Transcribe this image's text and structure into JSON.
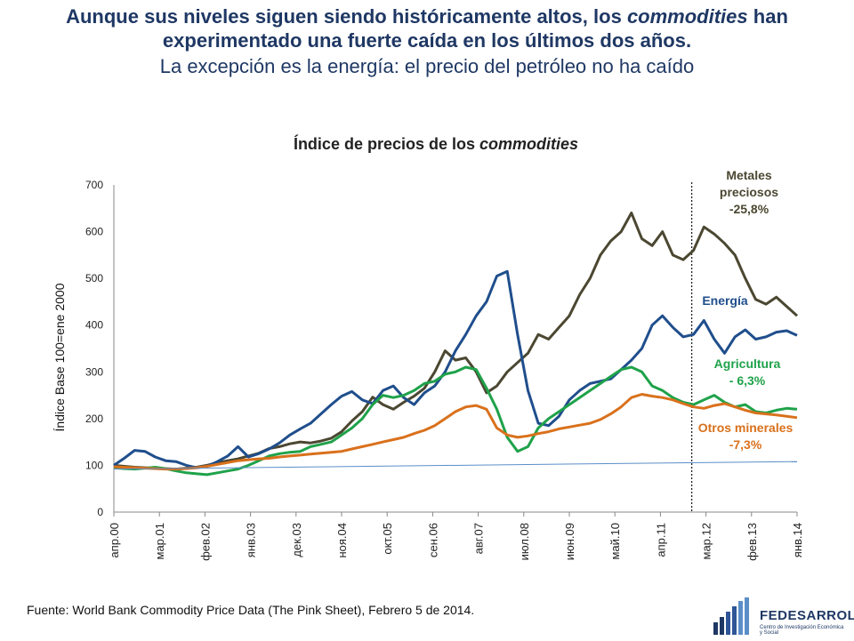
{
  "header": {
    "title_part1": "Aunque sus niveles siguen siendo históricamente altos, los",
    "title_italic": "commodities",
    "title_part2": "han experimentado una fuerte caída en los últimos dos años.",
    "subtitle": "La excepción es la energía: el precio del petróleo no ha caído"
  },
  "chart_title": {
    "prefix": "Índice de precios de los",
    "italic": "commodities"
  },
  "footer": {
    "source": "Fuente: World Bank Commodity Price Data (The Pink Sheet), Febrero 5 de 2014."
  },
  "logo": {
    "name": "FEDESARROLLO",
    "tagline": "Centro de Investigación Económica y Social"
  },
  "chart_data": {
    "type": "line",
    "title": "Índice de precios de los commodities",
    "xlabel": "",
    "ylabel": "Índice Base 100=ene 2000",
    "ylim": [
      0,
      700
    ],
    "yticks": [
      0,
      100,
      200,
      300,
      400,
      500,
      600,
      700
    ],
    "xticks": [
      "апр.00",
      "мар.01",
      "фев.02",
      "янв.03",
      "дек.03",
      "ноя.04",
      "окт.05",
      "сен.06",
      "авг.07",
      "июл.08",
      "июн.09",
      "май.10",
      "апр.11",
      "мар.12",
      "фев.13",
      "янв.14"
    ],
    "grid": false,
    "vertical_marker_tick": "мар.12",
    "series": [
      {
        "name": "Metales preciosos",
        "annotation": [
          "Metales",
          "preciosos",
          "-25,8%"
        ],
        "color": "#4b4731",
        "points": [
          [
            0,
            100
          ],
          [
            1,
            98
          ],
          [
            2,
            96
          ],
          [
            3,
            95
          ],
          [
            4,
            94
          ],
          [
            5,
            93
          ],
          [
            6,
            92
          ],
          [
            7,
            94
          ],
          [
            8,
            96
          ],
          [
            9,
            100
          ],
          [
            10,
            106
          ],
          [
            11,
            110
          ],
          [
            12,
            114
          ],
          [
            13,
            120
          ],
          [
            14,
            126
          ],
          [
            15,
            136
          ],
          [
            16,
            140
          ],
          [
            17,
            146
          ],
          [
            18,
            150
          ],
          [
            19,
            148
          ],
          [
            20,
            152
          ],
          [
            21,
            158
          ],
          [
            22,
            172
          ],
          [
            23,
            195
          ],
          [
            24,
            215
          ],
          [
            25,
            246
          ],
          [
            26,
            230
          ],
          [
            27,
            220
          ],
          [
            28,
            235
          ],
          [
            29,
            248
          ],
          [
            30,
            265
          ],
          [
            31,
            300
          ],
          [
            32,
            345
          ],
          [
            33,
            325
          ],
          [
            34,
            330
          ],
          [
            35,
            300
          ],
          [
            36,
            255
          ],
          [
            37,
            270
          ],
          [
            38,
            300
          ],
          [
            39,
            320
          ],
          [
            40,
            340
          ],
          [
            41,
            380
          ],
          [
            42,
            370
          ],
          [
            43,
            395
          ],
          [
            44,
            420
          ],
          [
            45,
            465
          ],
          [
            46,
            500
          ],
          [
            47,
            550
          ],
          [
            48,
            580
          ],
          [
            49,
            600
          ],
          [
            50,
            640
          ],
          [
            51,
            585
          ],
          [
            52,
            570
          ],
          [
            53,
            600
          ],
          [
            54,
            550
          ],
          [
            55,
            540
          ],
          [
            56,
            560
          ],
          [
            57,
            610
          ],
          [
            58,
            595
          ],
          [
            59,
            575
          ],
          [
            60,
            550
          ],
          [
            61,
            500
          ],
          [
            62,
            455
          ],
          [
            63,
            445
          ],
          [
            64,
            460
          ],
          [
            65,
            440
          ],
          [
            66,
            420
          ]
        ]
      },
      {
        "name": "Energía",
        "annotation": [
          "Energía"
        ],
        "color": "#1f4e8c",
        "points": [
          [
            0,
            100
          ],
          [
            1,
            115
          ],
          [
            2,
            132
          ],
          [
            3,
            130
          ],
          [
            4,
            118
          ],
          [
            5,
            110
          ],
          [
            6,
            108
          ],
          [
            7,
            100
          ],
          [
            8,
            95
          ],
          [
            9,
            98
          ],
          [
            10,
            108
          ],
          [
            11,
            120
          ],
          [
            12,
            140
          ],
          [
            13,
            118
          ],
          [
            14,
            125
          ],
          [
            15,
            135
          ],
          [
            16,
            148
          ],
          [
            17,
            165
          ],
          [
            18,
            178
          ],
          [
            19,
            190
          ],
          [
            20,
            210
          ],
          [
            21,
            230
          ],
          [
            22,
            248
          ],
          [
            23,
            258
          ],
          [
            24,
            240
          ],
          [
            25,
            232
          ],
          [
            26,
            260
          ],
          [
            27,
            270
          ],
          [
            28,
            245
          ],
          [
            29,
            230
          ],
          [
            30,
            255
          ],
          [
            31,
            270
          ],
          [
            32,
            300
          ],
          [
            33,
            345
          ],
          [
            34,
            380
          ],
          [
            35,
            420
          ],
          [
            36,
            450
          ],
          [
            37,
            505
          ],
          [
            38,
            515
          ],
          [
            39,
            380
          ],
          [
            40,
            260
          ],
          [
            41,
            190
          ],
          [
            42,
            185
          ],
          [
            43,
            205
          ],
          [
            44,
            240
          ],
          [
            45,
            260
          ],
          [
            46,
            275
          ],
          [
            47,
            280
          ],
          [
            48,
            285
          ],
          [
            49,
            305
          ],
          [
            50,
            325
          ],
          [
            51,
            350
          ],
          [
            52,
            400
          ],
          [
            53,
            420
          ],
          [
            54,
            395
          ],
          [
            55,
            375
          ],
          [
            56,
            380
          ],
          [
            57,
            410
          ],
          [
            58,
            370
          ],
          [
            59,
            340
          ],
          [
            60,
            375
          ],
          [
            61,
            390
          ],
          [
            62,
            370
          ],
          [
            63,
            375
          ],
          [
            64,
            385
          ],
          [
            65,
            388
          ],
          [
            66,
            378
          ]
        ]
      },
      {
        "name": "Agricultura",
        "annotation": [
          "Agricultura",
          "- 6,3%"
        ],
        "color": "#1fa24a",
        "points": [
          [
            0,
            95
          ],
          [
            1,
            93
          ],
          [
            2,
            92
          ],
          [
            3,
            94
          ],
          [
            4,
            96
          ],
          [
            5,
            93
          ],
          [
            6,
            88
          ],
          [
            7,
            84
          ],
          [
            8,
            82
          ],
          [
            9,
            80
          ],
          [
            10,
            84
          ],
          [
            11,
            88
          ],
          [
            12,
            92
          ],
          [
            13,
            100
          ],
          [
            14,
            110
          ],
          [
            15,
            120
          ],
          [
            16,
            125
          ],
          [
            17,
            128
          ],
          [
            18,
            130
          ],
          [
            19,
            140
          ],
          [
            20,
            145
          ],
          [
            21,
            150
          ],
          [
            22,
            165
          ],
          [
            23,
            180
          ],
          [
            24,
            200
          ],
          [
            25,
            230
          ],
          [
            26,
            250
          ],
          [
            27,
            245
          ],
          [
            28,
            250
          ],
          [
            29,
            260
          ],
          [
            30,
            275
          ],
          [
            31,
            280
          ],
          [
            32,
            295
          ],
          [
            33,
            300
          ],
          [
            34,
            310
          ],
          [
            35,
            305
          ],
          [
            36,
            265
          ],
          [
            37,
            220
          ],
          [
            38,
            160
          ],
          [
            39,
            130
          ],
          [
            40,
            140
          ],
          [
            41,
            180
          ],
          [
            42,
            200
          ],
          [
            43,
            215
          ],
          [
            44,
            230
          ],
          [
            45,
            245
          ],
          [
            46,
            260
          ],
          [
            47,
            275
          ],
          [
            48,
            290
          ],
          [
            49,
            305
          ],
          [
            50,
            310
          ],
          [
            51,
            300
          ],
          [
            52,
            270
          ],
          [
            53,
            260
          ],
          [
            54,
            245
          ],
          [
            55,
            235
          ],
          [
            56,
            230
          ],
          [
            57,
            240
          ],
          [
            58,
            250
          ],
          [
            59,
            235
          ],
          [
            60,
            225
          ],
          [
            61,
            230
          ],
          [
            62,
            215
          ],
          [
            63,
            212
          ],
          [
            64,
            218
          ],
          [
            65,
            222
          ],
          [
            66,
            220
          ]
        ]
      },
      {
        "name": "Otros minerales",
        "annotation": [
          "Otros minerales",
          "-7,3%"
        ],
        "color": "#d9711c",
        "points": [
          [
            0,
            97
          ],
          [
            1,
            96
          ],
          [
            2,
            95
          ],
          [
            3,
            94
          ],
          [
            4,
            93
          ],
          [
            5,
            92
          ],
          [
            6,
            92
          ],
          [
            7,
            93
          ],
          [
            8,
            95
          ],
          [
            9,
            98
          ],
          [
            10,
            102
          ],
          [
            11,
            106
          ],
          [
            12,
            110
          ],
          [
            13,
            112
          ],
          [
            14,
            114
          ],
          [
            15,
            115
          ],
          [
            16,
            118
          ],
          [
            17,
            120
          ],
          [
            18,
            122
          ],
          [
            19,
            124
          ],
          [
            20,
            126
          ],
          [
            21,
            128
          ],
          [
            22,
            130
          ],
          [
            23,
            135
          ],
          [
            24,
            140
          ],
          [
            25,
            145
          ],
          [
            26,
            150
          ],
          [
            27,
            155
          ],
          [
            28,
            160
          ],
          [
            29,
            168
          ],
          [
            30,
            175
          ],
          [
            31,
            185
          ],
          [
            32,
            200
          ],
          [
            33,
            215
          ],
          [
            34,
            225
          ],
          [
            35,
            228
          ],
          [
            36,
            220
          ],
          [
            37,
            180
          ],
          [
            38,
            165
          ],
          [
            39,
            160
          ],
          [
            40,
            163
          ],
          [
            41,
            168
          ],
          [
            42,
            172
          ],
          [
            43,
            178
          ],
          [
            44,
            182
          ],
          [
            45,
            186
          ],
          [
            46,
            190
          ],
          [
            47,
            198
          ],
          [
            48,
            210
          ],
          [
            49,
            225
          ],
          [
            50,
            245
          ],
          [
            51,
            252
          ],
          [
            52,
            248
          ],
          [
            53,
            245
          ],
          [
            54,
            240
          ],
          [
            55,
            232
          ],
          [
            56,
            225
          ],
          [
            57,
            222
          ],
          [
            58,
            228
          ],
          [
            59,
            232
          ],
          [
            60,
            225
          ],
          [
            61,
            218
          ],
          [
            62,
            212
          ],
          [
            63,
            210
          ],
          [
            64,
            208
          ],
          [
            65,
            205
          ],
          [
            66,
            202
          ]
        ]
      },
      {
        "name": "",
        "color": "#5b8ec9",
        "points": [
          [
            0,
            92
          ],
          [
            66,
            108
          ]
        ]
      }
    ]
  },
  "colors": {
    "headline": "#1f3864",
    "metals_label": "#4b4731",
    "energy_label": "#1f4e8c",
    "agri_label": "#1fa24a",
    "minerals_label": "#d9711c"
  }
}
